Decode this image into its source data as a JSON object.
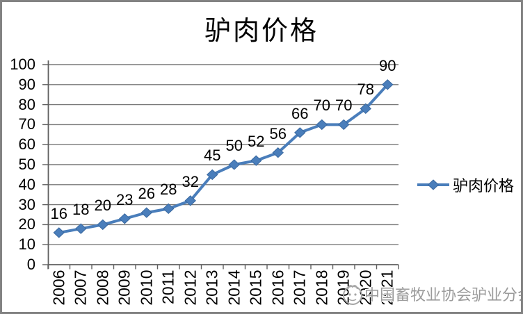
{
  "chart_data": {
    "type": "line",
    "title": "驴肉价格",
    "categories": [
      "2006",
      "2007",
      "2008",
      "2009",
      "2010",
      "2011",
      "2012",
      "2013",
      "2014",
      "2015",
      "2016",
      "2017",
      "2018",
      "2019",
      "2020",
      "2021"
    ],
    "series": [
      {
        "name": "驴肉价格",
        "values": [
          16,
          18,
          20,
          23,
          26,
          28,
          32,
          45,
          50,
          52,
          56,
          66,
          70,
          70,
          78,
          90
        ],
        "color": "#4a7ebb",
        "marker": "diamond"
      }
    ],
    "xlabel": "",
    "ylabel": "",
    "ylim": [
      0,
      100
    ],
    "ytick_step": 10,
    "grid": true,
    "legend_position": "right",
    "data_labels": true
  },
  "watermark": {
    "text": "中国畜牧业协会驴业分会"
  },
  "colors": {
    "line": "#4a7ebb",
    "marker_edge": "#39689f",
    "grid": "#787878",
    "axis": "#5f5f5f",
    "text": "#000000",
    "watermark": "#9b9b9b",
    "frame_border": "#828282",
    "background": "#ffffff"
  }
}
